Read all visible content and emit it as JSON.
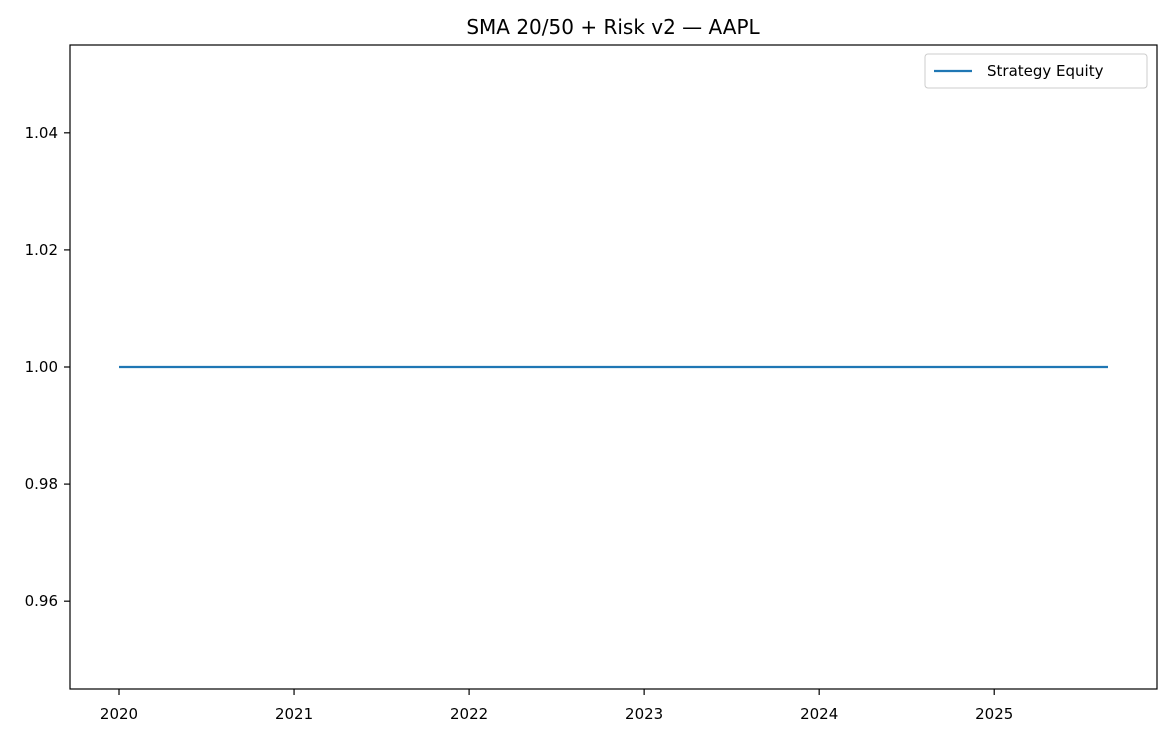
{
  "chart_data": {
    "type": "line",
    "title": "SMA 20/50 + Risk v2 — AAPL",
    "xlabel": "",
    "ylabel": "",
    "x_ticks": [
      {
        "value": 2020,
        "label": "2020"
      },
      {
        "value": 2021,
        "label": "2021"
      },
      {
        "value": 2022,
        "label": "2022"
      },
      {
        "value": 2023,
        "label": "2023"
      },
      {
        "value": 2024,
        "label": "2024"
      },
      {
        "value": 2025,
        "label": "2025"
      }
    ],
    "y_ticks": [
      {
        "value": 0.96,
        "label": "0.96"
      },
      {
        "value": 0.98,
        "label": "0.98"
      },
      {
        "value": 1.0,
        "label": "1.00"
      },
      {
        "value": 1.02,
        "label": "1.02"
      },
      {
        "value": 1.04,
        "label": "1.04"
      }
    ],
    "xlim": [
      2019.72,
      2025.93
    ],
    "ylim": [
      0.945,
      1.055
    ],
    "grid": false,
    "legend_position": "top-right",
    "series": [
      {
        "name": "Strategy Equity",
        "color": "#1f77b4",
        "x": [
          2020.0,
          2025.65
        ],
        "y": [
          1.0,
          1.0
        ]
      }
    ]
  }
}
